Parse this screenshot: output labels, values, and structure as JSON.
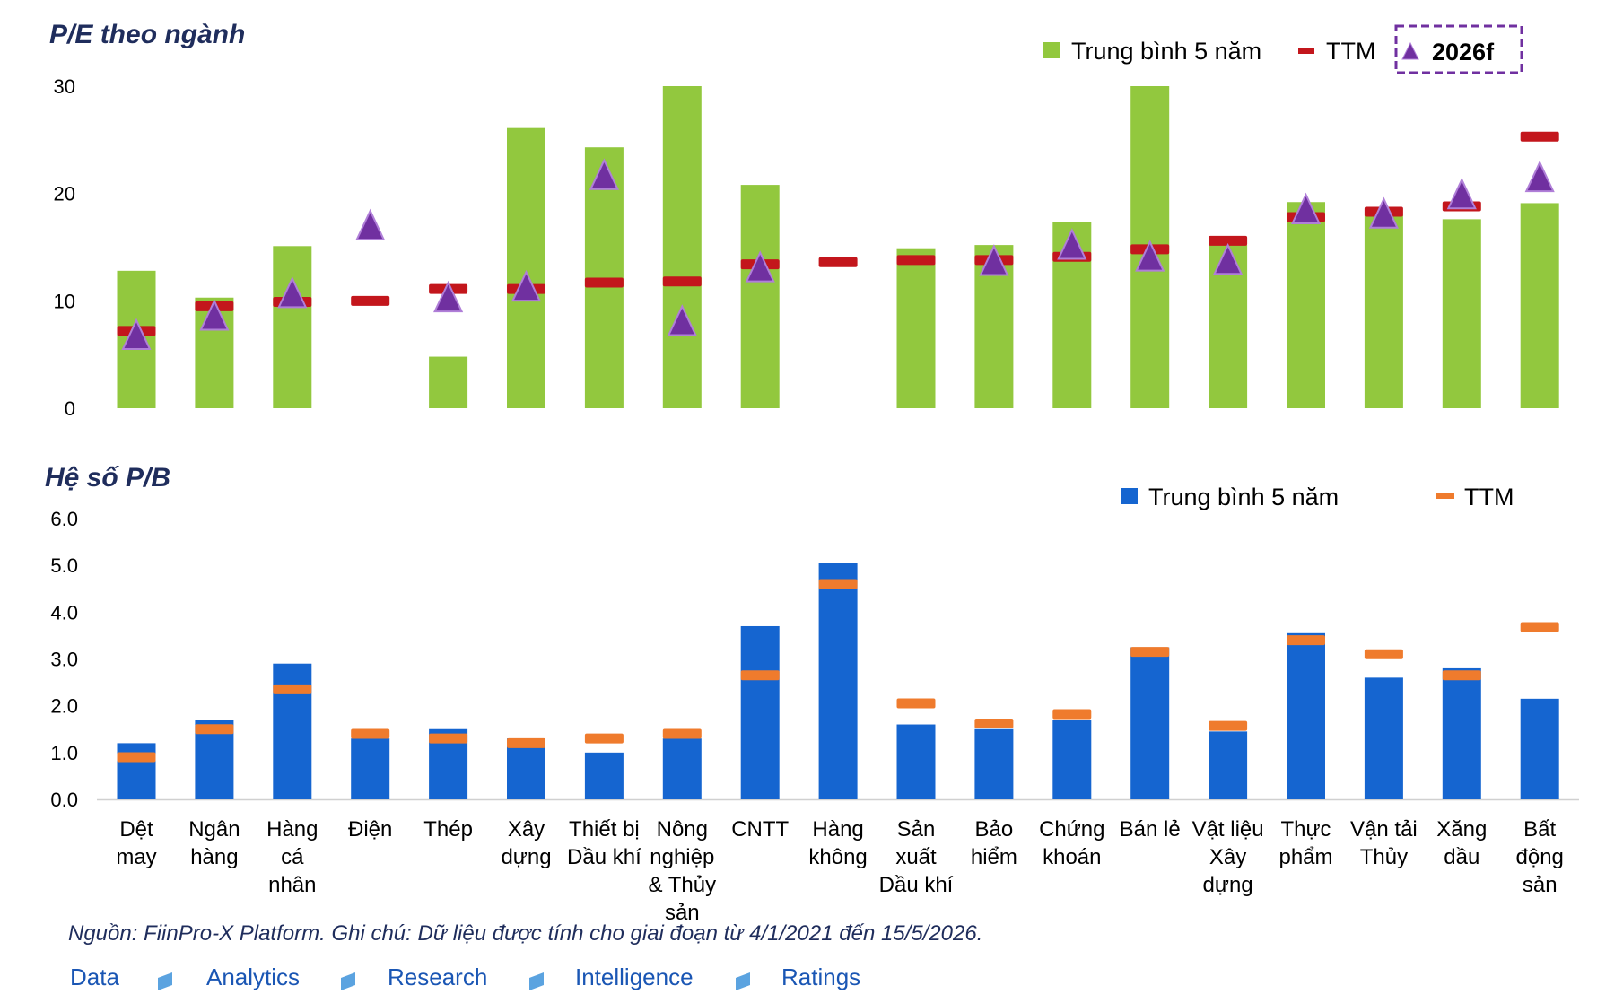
{
  "chart_data": [
    {
      "type": "bar",
      "title": "P/E theo ngành",
      "ylim": [
        0,
        30
      ],
      "yticks": [
        "0",
        "10",
        "20",
        "30"
      ],
      "categories": [
        "Dệt may",
        "Ngân hàng",
        "Hàng cá nhân",
        "Điện",
        "Thép",
        "Xây dựng",
        "Thiết bị Dầu khí",
        "Nông nghiệp & Thủy sản",
        "CNTT",
        "Hàng không",
        "Sản xuất Dầu khí",
        "Bảo hiểm",
        "Chứng khoán",
        "Bán lẻ",
        "Vật liệu Xây dựng",
        "Thực phẩm",
        "Vận tải Thủy",
        "Xăng dầu",
        "Bất động sản"
      ],
      "series": [
        {
          "name": "Trung bình 5 năm",
          "kind": "bar",
          "color": "#92c83e",
          "values": [
            12.8,
            10.3,
            15.1,
            null,
            4.8,
            26.1,
            24.3,
            30.0,
            20.8,
            null,
            14.9,
            15.2,
            17.3,
            30.0,
            15.2,
            19.2,
            18.0,
            17.6,
            19.1
          ]
        },
        {
          "name": "TTM",
          "kind": "dash",
          "color": "#c3161c",
          "values": [
            7.2,
            9.5,
            9.9,
            10.0,
            11.1,
            11.1,
            11.7,
            11.8,
            13.4,
            13.6,
            13.8,
            13.8,
            14.1,
            14.8,
            15.6,
            17.8,
            18.3,
            18.8,
            25.3
          ]
        },
        {
          "name": "2026f",
          "kind": "triangle",
          "color": "#7030a0",
          "values": [
            6.6,
            8.4,
            10.5,
            16.8,
            10.1,
            11.1,
            21.5,
            7.9,
            12.9,
            null,
            null,
            13.5,
            15.0,
            13.9,
            13.6,
            18.3,
            17.9,
            19.7,
            21.3
          ]
        }
      ]
    },
    {
      "type": "bar",
      "title": "Hệ số P/B",
      "ylim": [
        0,
        6
      ],
      "yticks": [
        "0.0",
        "1.0",
        "2.0",
        "3.0",
        "4.0",
        "5.0",
        "6.0"
      ],
      "categories": [
        "Dệt may",
        "Ngân hàng",
        "Hàng cá nhân",
        "Điện",
        "Thép",
        "Xây dựng",
        "Thiết bị Dầu khí",
        "Nông nghiệp & Thủy sản",
        "CNTT",
        "Hàng không",
        "Sản xuất Dầu khí",
        "Bảo hiểm",
        "Chứng khoán",
        "Bán lẻ",
        "Vật liệu Xây dựng",
        "Thực phẩm",
        "Vận tải Thủy",
        "Xăng dầu",
        "Bất động sản"
      ],
      "series": [
        {
          "name": "Trung bình 5 năm",
          "kind": "bar",
          "color": "#1565d0",
          "values": [
            1.2,
            1.7,
            2.9,
            1.3,
            1.5,
            1.3,
            1.0,
            1.3,
            3.7,
            5.05,
            1.6,
            1.5,
            1.7,
            3.25,
            1.45,
            3.55,
            2.6,
            2.8,
            2.15
          ]
        },
        {
          "name": "TTM",
          "kind": "dash",
          "color": "#ef7b2d",
          "values": [
            0.9,
            1.5,
            2.35,
            1.4,
            1.3,
            1.2,
            1.3,
            1.4,
            2.65,
            4.6,
            2.05,
            1.62,
            1.82,
            3.15,
            1.57,
            3.4,
            3.1,
            2.65,
            3.68
          ]
        }
      ]
    }
  ],
  "category_lines": [
    [
      "Dệt",
      "may"
    ],
    [
      "Ngân",
      "hàng"
    ],
    [
      "Hàng",
      "cá",
      "nhân"
    ],
    [
      "Điện"
    ],
    [
      "Thép"
    ],
    [
      "Xây",
      "dựng"
    ],
    [
      "Thiết bị",
      "Dầu khí"
    ],
    [
      "Nông",
      "nghiệp",
      "& Thủy",
      "sản"
    ],
    [
      "CNTT"
    ],
    [
      "Hàng",
      "không"
    ],
    [
      "Sản",
      "xuất",
      "Dầu khí"
    ],
    [
      "Bảo",
      "hiểm"
    ],
    [
      "Chứng",
      "khoán"
    ],
    [
      "Bán lẻ"
    ],
    [
      "Vật liệu",
      "Xây",
      "dựng"
    ],
    [
      "Thực",
      "phẩm"
    ],
    [
      "Vận tải",
      "Thủy"
    ],
    [
      "Xăng",
      "dầu"
    ],
    [
      "Bất",
      "động",
      "sản"
    ]
  ],
  "note": "Nguồn: FiinPro-X Platform. Ghi chú: Dữ liệu được tính cho giai đoạn từ 4/1/2021 đến 15/5/2026.",
  "footer": [
    "Data",
    "Analytics",
    "Research",
    "Intelligence",
    "Ratings"
  ],
  "colors": {
    "footer": "#1a56b4",
    "legend_box": "#7030a0",
    "footer_marker": "#5ba3e0"
  }
}
